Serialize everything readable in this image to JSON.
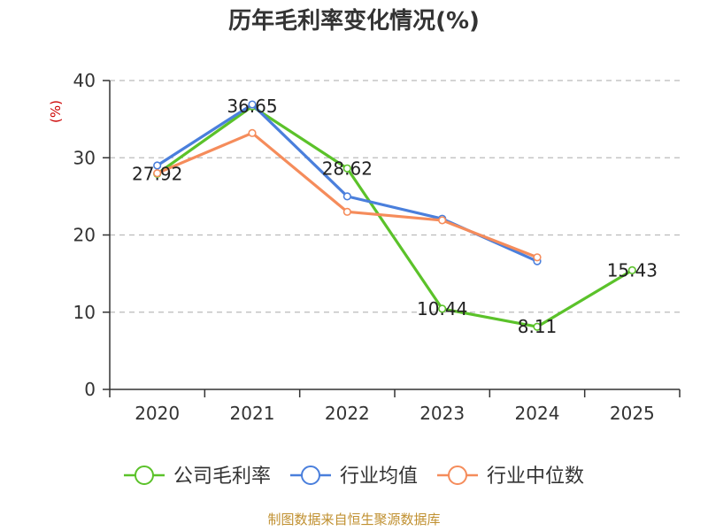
{
  "chart_data": {
    "type": "line",
    "title": "历年毛利率变化情况(%)",
    "ylabel": "(%)",
    "categories": [
      "2020",
      "2021",
      "2022",
      "2023",
      "2024",
      "2025"
    ],
    "ylim": [
      0,
      40
    ],
    "yticks": [
      "0",
      "10",
      "20",
      "30",
      "40"
    ],
    "grid": true,
    "legend_position": "bottom",
    "series": [
      {
        "name": "公司毛利率",
        "color": "#5bc22a",
        "values": [
          27.92,
          36.65,
          28.62,
          10.44,
          8.11,
          15.43
        ],
        "labels": [
          "27.92",
          "36.65",
          "28.62",
          "10.44",
          "8.11",
          "15.43"
        ]
      },
      {
        "name": "行业均值",
        "color": "#4a7fdc",
        "values": [
          29.0,
          36.9,
          25.0,
          22.1,
          16.6,
          null
        ]
      },
      {
        "name": "行业中位数",
        "color": "#f58c5b",
        "values": [
          28.0,
          33.2,
          23.0,
          21.9,
          17.1,
          null
        ]
      }
    ]
  },
  "source": "制图数据来自恒生聚源数据库"
}
